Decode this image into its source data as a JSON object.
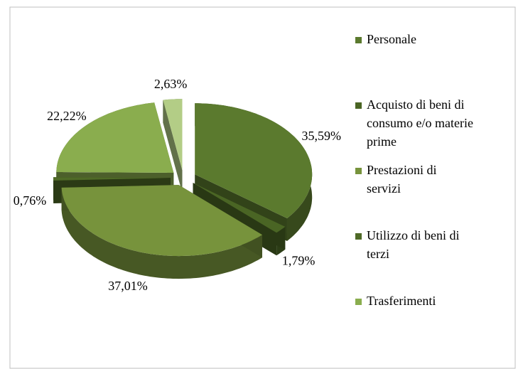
{
  "chart_data": {
    "type": "pie",
    "categories": [
      "Personale",
      "Acquisto di beni di consumo e/o materie prime",
      "Prestazioni di servizi",
      "Utilizzo di beni di terzi",
      "Trasferimenti",
      null
    ],
    "values": [
      35.59,
      1.79,
      37.01,
      0.76,
      22.22,
      2.63
    ],
    "value_labels": [
      "35,59%",
      "1,79%",
      "37,01%",
      "0,76%",
      "22,22%",
      "2,63%"
    ],
    "colors": [
      "#5b7a2e",
      "#4a6524",
      "#77933c",
      "#4f6a27",
      "#8aad4e",
      "#b3cd86"
    ],
    "legend": "right"
  }
}
